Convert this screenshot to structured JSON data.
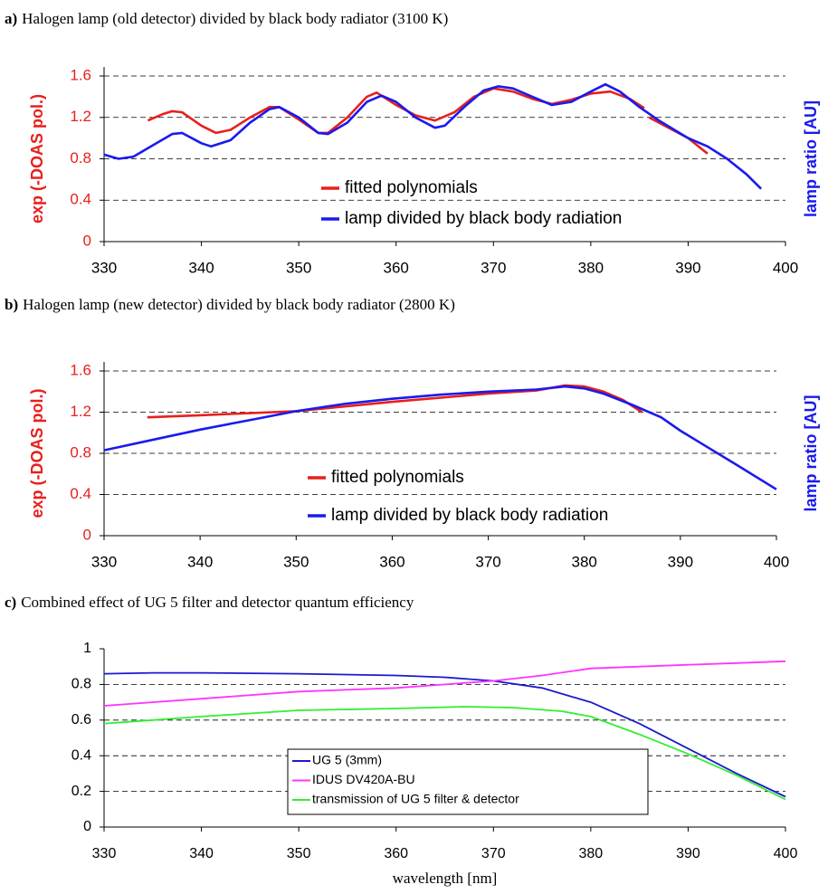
{
  "chart_data": [
    {
      "type": "line",
      "panel_label": "a)",
      "title": "Halogen lamp (old detector) divided by black body radiator (3100 K)",
      "y_label": "exp (-DOAS pol.)",
      "y2_label": "lamp ratio [AU]",
      "xlim": [
        330,
        400
      ],
      "xticks": [
        330,
        340,
        350,
        360,
        370,
        380,
        390,
        400
      ],
      "ylim": [
        0,
        1.6
      ],
      "yticks": [
        0,
        0.4,
        0.8,
        1.2,
        1.6
      ],
      "grid": true,
      "legend": "lower right",
      "legend_box": false,
      "series": [
        {
          "name": "fitted polynomials",
          "color": "#e8201c",
          "x": [
            334.5,
            336,
            337,
            338,
            340,
            341.5,
            343,
            345,
            347,
            348,
            350,
            352,
            353,
            355,
            357,
            358,
            359,
            360,
            362,
            364,
            366,
            368,
            370,
            372,
            374,
            376,
            378,
            380,
            382,
            384,
            385.5,
            385.7,
            386,
            388,
            390,
            392
          ],
          "values": [
            1.17,
            1.23,
            1.26,
            1.25,
            1.12,
            1.05,
            1.08,
            1.2,
            1.3,
            1.3,
            1.18,
            1.05,
            1.05,
            1.2,
            1.4,
            1.44,
            1.38,
            1.32,
            1.22,
            1.17,
            1.25,
            1.4,
            1.48,
            1.45,
            1.38,
            1.33,
            1.37,
            1.43,
            1.45,
            1.38,
            1.29,
            null,
            1.2,
            1.1,
            1.0,
            0.85
          ]
        },
        {
          "name": "lamp divided by black body radiation",
          "color": "#1a1aee",
          "x": [
            330,
            331.5,
            333,
            335,
            337,
            338,
            340,
            341,
            343,
            345,
            347,
            348,
            350,
            352,
            353,
            355,
            357,
            358.5,
            360,
            362,
            364,
            365,
            367,
            369,
            370.5,
            372,
            374,
            376,
            378,
            380,
            381.5,
            383,
            385,
            387,
            390,
            392,
            394,
            396,
            397.5
          ],
          "values": [
            0.84,
            0.8,
            0.82,
            0.93,
            1.04,
            1.05,
            0.95,
            0.92,
            0.98,
            1.15,
            1.28,
            1.3,
            1.2,
            1.05,
            1.04,
            1.15,
            1.35,
            1.41,
            1.35,
            1.2,
            1.1,
            1.12,
            1.3,
            1.46,
            1.5,
            1.48,
            1.4,
            1.32,
            1.35,
            1.45,
            1.52,
            1.45,
            1.3,
            1.17,
            1.0,
            0.92,
            0.8,
            0.65,
            0.51
          ]
        }
      ]
    },
    {
      "type": "line",
      "panel_label": "b)",
      "title": "Halogen lamp (new detector) divided by black body radiator (2800 K)",
      "y_label": "exp (-DOAS pol.)",
      "y2_label": "lamp ratio [AU]",
      "xlim": [
        330,
        400
      ],
      "xticks": [
        330,
        340,
        350,
        360,
        370,
        380,
        390,
        400
      ],
      "ylim": [
        0,
        1.6
      ],
      "yticks": [
        0,
        0.4,
        0.8,
        1.2,
        1.6
      ],
      "grid": true,
      "legend": "lower right",
      "legend_box": false,
      "series": [
        {
          "name": "fitted polynomials",
          "color": "#e8201c",
          "x": [
            334.5,
            340,
            350,
            360,
            370,
            375,
            378,
            380,
            382,
            384,
            386
          ],
          "values": [
            1.15,
            1.17,
            1.21,
            1.3,
            1.38,
            1.41,
            1.46,
            1.45,
            1.4,
            1.32,
            1.2
          ]
        },
        {
          "name": "lamp divided by black body radiation",
          "color": "#1a1aee",
          "x": [
            330,
            335,
            340,
            345,
            350,
            355,
            360,
            365,
            370,
            375,
            378,
            380,
            382,
            385,
            388,
            390,
            393,
            396,
            400
          ],
          "values": [
            0.83,
            0.93,
            1.03,
            1.12,
            1.21,
            1.28,
            1.33,
            1.37,
            1.4,
            1.42,
            1.45,
            1.43,
            1.38,
            1.27,
            1.15,
            1.02,
            0.85,
            0.68,
            0.45
          ]
        }
      ]
    },
    {
      "type": "line",
      "panel_label": "c)",
      "title": "Combined effect of UG 5 filter and detector quantum efficiency",
      "x_label": "wavelength [nm]",
      "xlim": [
        330,
        400
      ],
      "xticks": [
        330,
        340,
        350,
        360,
        370,
        380,
        390,
        400
      ],
      "ylim": [
        0,
        1
      ],
      "yticks": [
        0,
        0.2,
        0.4,
        0.6,
        0.8,
        1
      ],
      "grid": true,
      "legend": "lower center",
      "legend_box": true,
      "series": [
        {
          "name": "UG 5 (3mm)",
          "color": "#1a1acc",
          "x": [
            330,
            335,
            340,
            350,
            360,
            365,
            370,
            375,
            380,
            385,
            390,
            395,
            400
          ],
          "values": [
            0.86,
            0.865,
            0.865,
            0.86,
            0.85,
            0.84,
            0.82,
            0.78,
            0.7,
            0.58,
            0.44,
            0.3,
            0.17
          ]
        },
        {
          "name": "IDUS DV420A-BU",
          "color": "#ff33ff",
          "x": [
            330,
            340,
            350,
            360,
            365,
            370,
            375,
            380,
            385,
            390,
            395,
            400
          ],
          "values": [
            0.68,
            0.72,
            0.76,
            0.78,
            0.8,
            0.82,
            0.85,
            0.89,
            0.9,
            0.91,
            0.92,
            0.93
          ]
        },
        {
          "name": "transmission of UG 5 filter & detector",
          "color": "#33ee33",
          "x": [
            330,
            335,
            340,
            350,
            360,
            367,
            372,
            377,
            380,
            385,
            390,
            395,
            400
          ],
          "values": [
            0.58,
            0.6,
            0.62,
            0.655,
            0.665,
            0.675,
            0.67,
            0.65,
            0.62,
            0.52,
            0.41,
            0.29,
            0.155
          ]
        }
      ]
    }
  ]
}
